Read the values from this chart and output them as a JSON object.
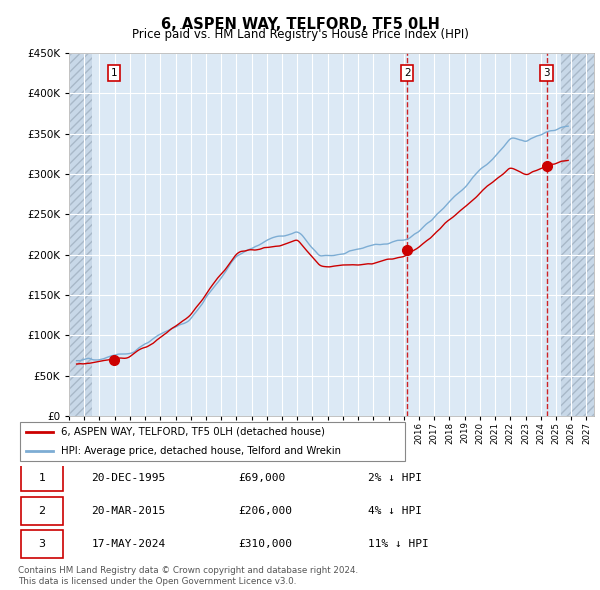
{
  "title": "6, ASPEN WAY, TELFORD, TF5 0LH",
  "subtitle": "Price paid vs. HM Land Registry's House Price Index (HPI)",
  "legend_line1": "6, ASPEN WAY, TELFORD, TF5 0LH (detached house)",
  "legend_line2": "HPI: Average price, detached house, Telford and Wrekin",
  "transactions": [
    {
      "label": "1",
      "date": 1995.97,
      "price": 69000
    },
    {
      "label": "2",
      "date": 2015.22,
      "price": 206000
    },
    {
      "label": "3",
      "date": 2024.38,
      "price": 310000
    }
  ],
  "table_rows": [
    [
      "1",
      "20-DEC-1995",
      "£69,000",
      "2% ↓ HPI"
    ],
    [
      "2",
      "20-MAR-2015",
      "£206,000",
      "4% ↓ HPI"
    ],
    [
      "3",
      "17-MAY-2024",
      "£310,000",
      "11% ↓ HPI"
    ]
  ],
  "footer": "Contains HM Land Registry data © Crown copyright and database right 2024.\nThis data is licensed under the Open Government Licence v3.0.",
  "hpi_color": "#7dadd4",
  "price_color": "#cc0000",
  "dashed_vline_color": "#cc0000",
  "bg_color": "#dce9f5",
  "grid_color": "#ffffff",
  "ylim": [
    0,
    450000
  ],
  "xlim_start": 1993.0,
  "xlim_end": 2027.5,
  "hatch_left_end": 1994.5,
  "hatch_right_start": 2025.3
}
